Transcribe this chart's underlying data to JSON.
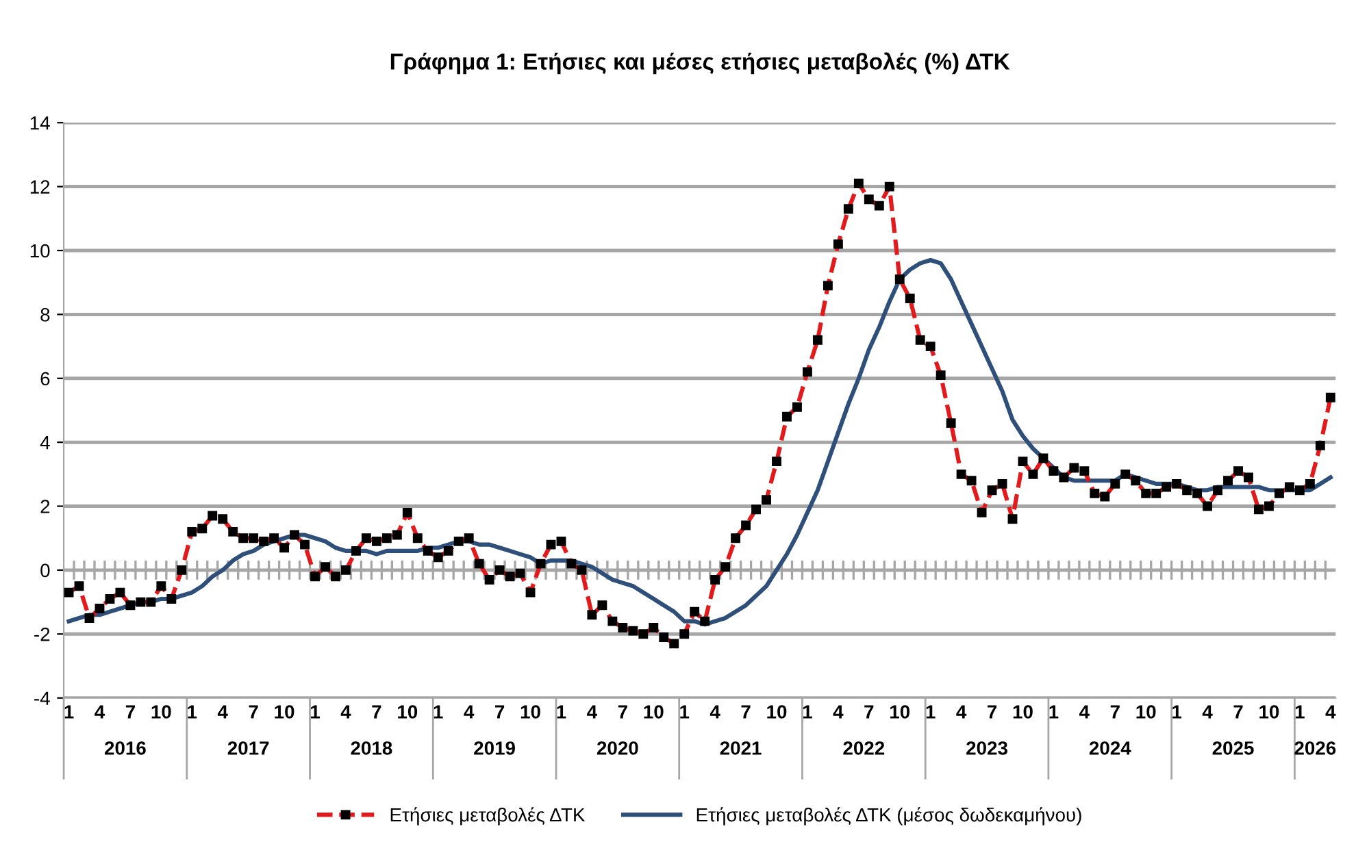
{
  "chart_data": {
    "type": "line",
    "title": "Γράφημα 1: Ετήσιες και μέσες ετήσιες μεταβολές (%) ΔΤΚ",
    "categories": [
      "1",
      null,
      null,
      "4",
      null,
      null,
      "7",
      null,
      null,
      "10",
      null,
      null,
      "1",
      null,
      null,
      "4",
      null,
      null,
      "7",
      null,
      null,
      "10",
      null,
      null,
      "1",
      null,
      null,
      "4",
      null,
      null,
      "7",
      null,
      null,
      "10",
      null,
      null,
      "1",
      null,
      null,
      "4",
      null,
      null,
      "7",
      null,
      null,
      "10",
      null,
      null,
      "1",
      null,
      null,
      "4",
      null,
      null,
      "7",
      null,
      null,
      "10",
      null,
      null,
      "1",
      null,
      null,
      "4",
      null,
      null,
      "7",
      null,
      null,
      "10",
      null,
      null,
      "1",
      null,
      null,
      "4",
      null,
      null,
      "7",
      null,
      null,
      "10",
      null,
      null,
      "1",
      null,
      null,
      "4",
      null,
      null,
      "7",
      null,
      null,
      "10",
      null,
      null,
      "1",
      null,
      null,
      "4",
      null,
      null,
      "7",
      null,
      null,
      "10",
      null,
      null,
      "1",
      null,
      null,
      "4",
      null,
      null,
      "7",
      null,
      null,
      "10",
      null,
      null,
      "1",
      null,
      null,
      "4"
    ],
    "series": [
      {
        "name": "Ετήσιες μεταβολές ΔΤΚ",
        "color": "#e31a1c",
        "marker": "square",
        "line_style": "dashed",
        "values": [
          -0.7,
          -0.5,
          -1.5,
          -1.2,
          -0.9,
          -0.7,
          -1.1,
          -1.0,
          -1.0,
          -0.5,
          -0.9,
          0.0,
          1.2,
          1.3,
          1.7,
          1.6,
          1.2,
          1.0,
          1.0,
          0.9,
          1.0,
          0.7,
          1.1,
          0.8,
          -0.2,
          0.1,
          -0.2,
          0.0,
          0.6,
          1.0,
          0.9,
          1.0,
          1.1,
          1.8,
          1.0,
          0.6,
          0.4,
          0.6,
          0.9,
          1.0,
          0.2,
          -0.3,
          0.0,
          -0.2,
          -0.1,
          -0.7,
          0.2,
          0.8,
          0.9,
          0.2,
          0.0,
          -1.4,
          -1.1,
          -1.6,
          -1.8,
          -1.9,
          -2.0,
          -1.8,
          -2.1,
          -2.3,
          -2.0,
          -1.3,
          -1.6,
          -0.3,
          0.1,
          1.0,
          1.4,
          1.9,
          2.2,
          3.4,
          4.8,
          5.1,
          6.2,
          7.2,
          8.9,
          10.2,
          11.3,
          12.1,
          11.6,
          11.4,
          12.0,
          9.1,
          8.5,
          7.2,
          7.0,
          6.1,
          4.6,
          3.0,
          2.8,
          1.8,
          2.5,
          2.7,
          1.6,
          3.4,
          3.0,
          3.5,
          3.1,
          2.9,
          3.2,
          3.1,
          2.4,
          2.3,
          2.7,
          3.0,
          2.8,
          2.4,
          2.4,
          2.6,
          2.7,
          2.5,
          2.4,
          2.0,
          2.5,
          2.8,
          3.1,
          2.9,
          1.9,
          2.0,
          2.4,
          2.6,
          2.5,
          2.7,
          3.9,
          5.4
        ]
      },
      {
        "name": "Ετήσιες μεταβολές ΔΤΚ (μέσος δωδεκαμήνου)",
        "color": "#2e4f7a",
        "marker": "none",
        "line_style": "solid",
        "values": [
          -1.6,
          -1.5,
          -1.4,
          -1.4,
          -1.3,
          -1.2,
          -1.1,
          -1.0,
          -1.0,
          -0.9,
          -0.9,
          -0.8,
          -0.7,
          -0.5,
          -0.2,
          0.0,
          0.3,
          0.5,
          0.6,
          0.8,
          0.9,
          1.0,
          1.1,
          1.1,
          1.0,
          0.9,
          0.7,
          0.6,
          0.6,
          0.6,
          0.5,
          0.6,
          0.6,
          0.6,
          0.6,
          0.7,
          0.7,
          0.8,
          0.9,
          0.9,
          0.8,
          0.8,
          0.7,
          0.6,
          0.5,
          0.4,
          0.2,
          0.3,
          0.3,
          0.3,
          0.2,
          0.1,
          -0.1,
          -0.3,
          -0.4,
          -0.5,
          -0.7,
          -0.9,
          -1.1,
          -1.3,
          -1.6,
          -1.6,
          -1.7,
          -1.6,
          -1.5,
          -1.3,
          -1.1,
          -0.8,
          -0.5,
          0.0,
          0.5,
          1.1,
          1.8,
          2.5,
          3.4,
          4.3,
          5.2,
          6.0,
          6.9,
          7.6,
          8.4,
          9.1,
          9.4,
          9.6,
          9.7,
          9.6,
          9.1,
          8.4,
          7.7,
          7.0,
          6.3,
          5.6,
          4.7,
          4.2,
          3.8,
          3.5,
          3.2,
          2.9,
          2.8,
          2.8,
          2.8,
          2.8,
          2.8,
          3.0,
          2.9,
          2.8,
          2.7,
          2.7,
          2.7,
          2.6,
          2.5,
          2.5,
          2.6,
          2.6,
          2.6,
          2.6,
          2.6,
          2.5,
          2.5,
          2.5,
          2.5,
          2.5,
          2.7,
          2.9
        ]
      }
    ],
    "ylim": [
      -4,
      14
    ],
    "yticks": [
      -4,
      -2,
      0,
      2,
      4,
      6,
      8,
      10,
      12,
      14
    ],
    "grid": "y",
    "legend": "bottom",
    "annotations": [
      "2016",
      "2017",
      "2018",
      "2019",
      "2020",
      "2021",
      "2022",
      "2023",
      "2024",
      "2025",
      "2026"
    ]
  }
}
